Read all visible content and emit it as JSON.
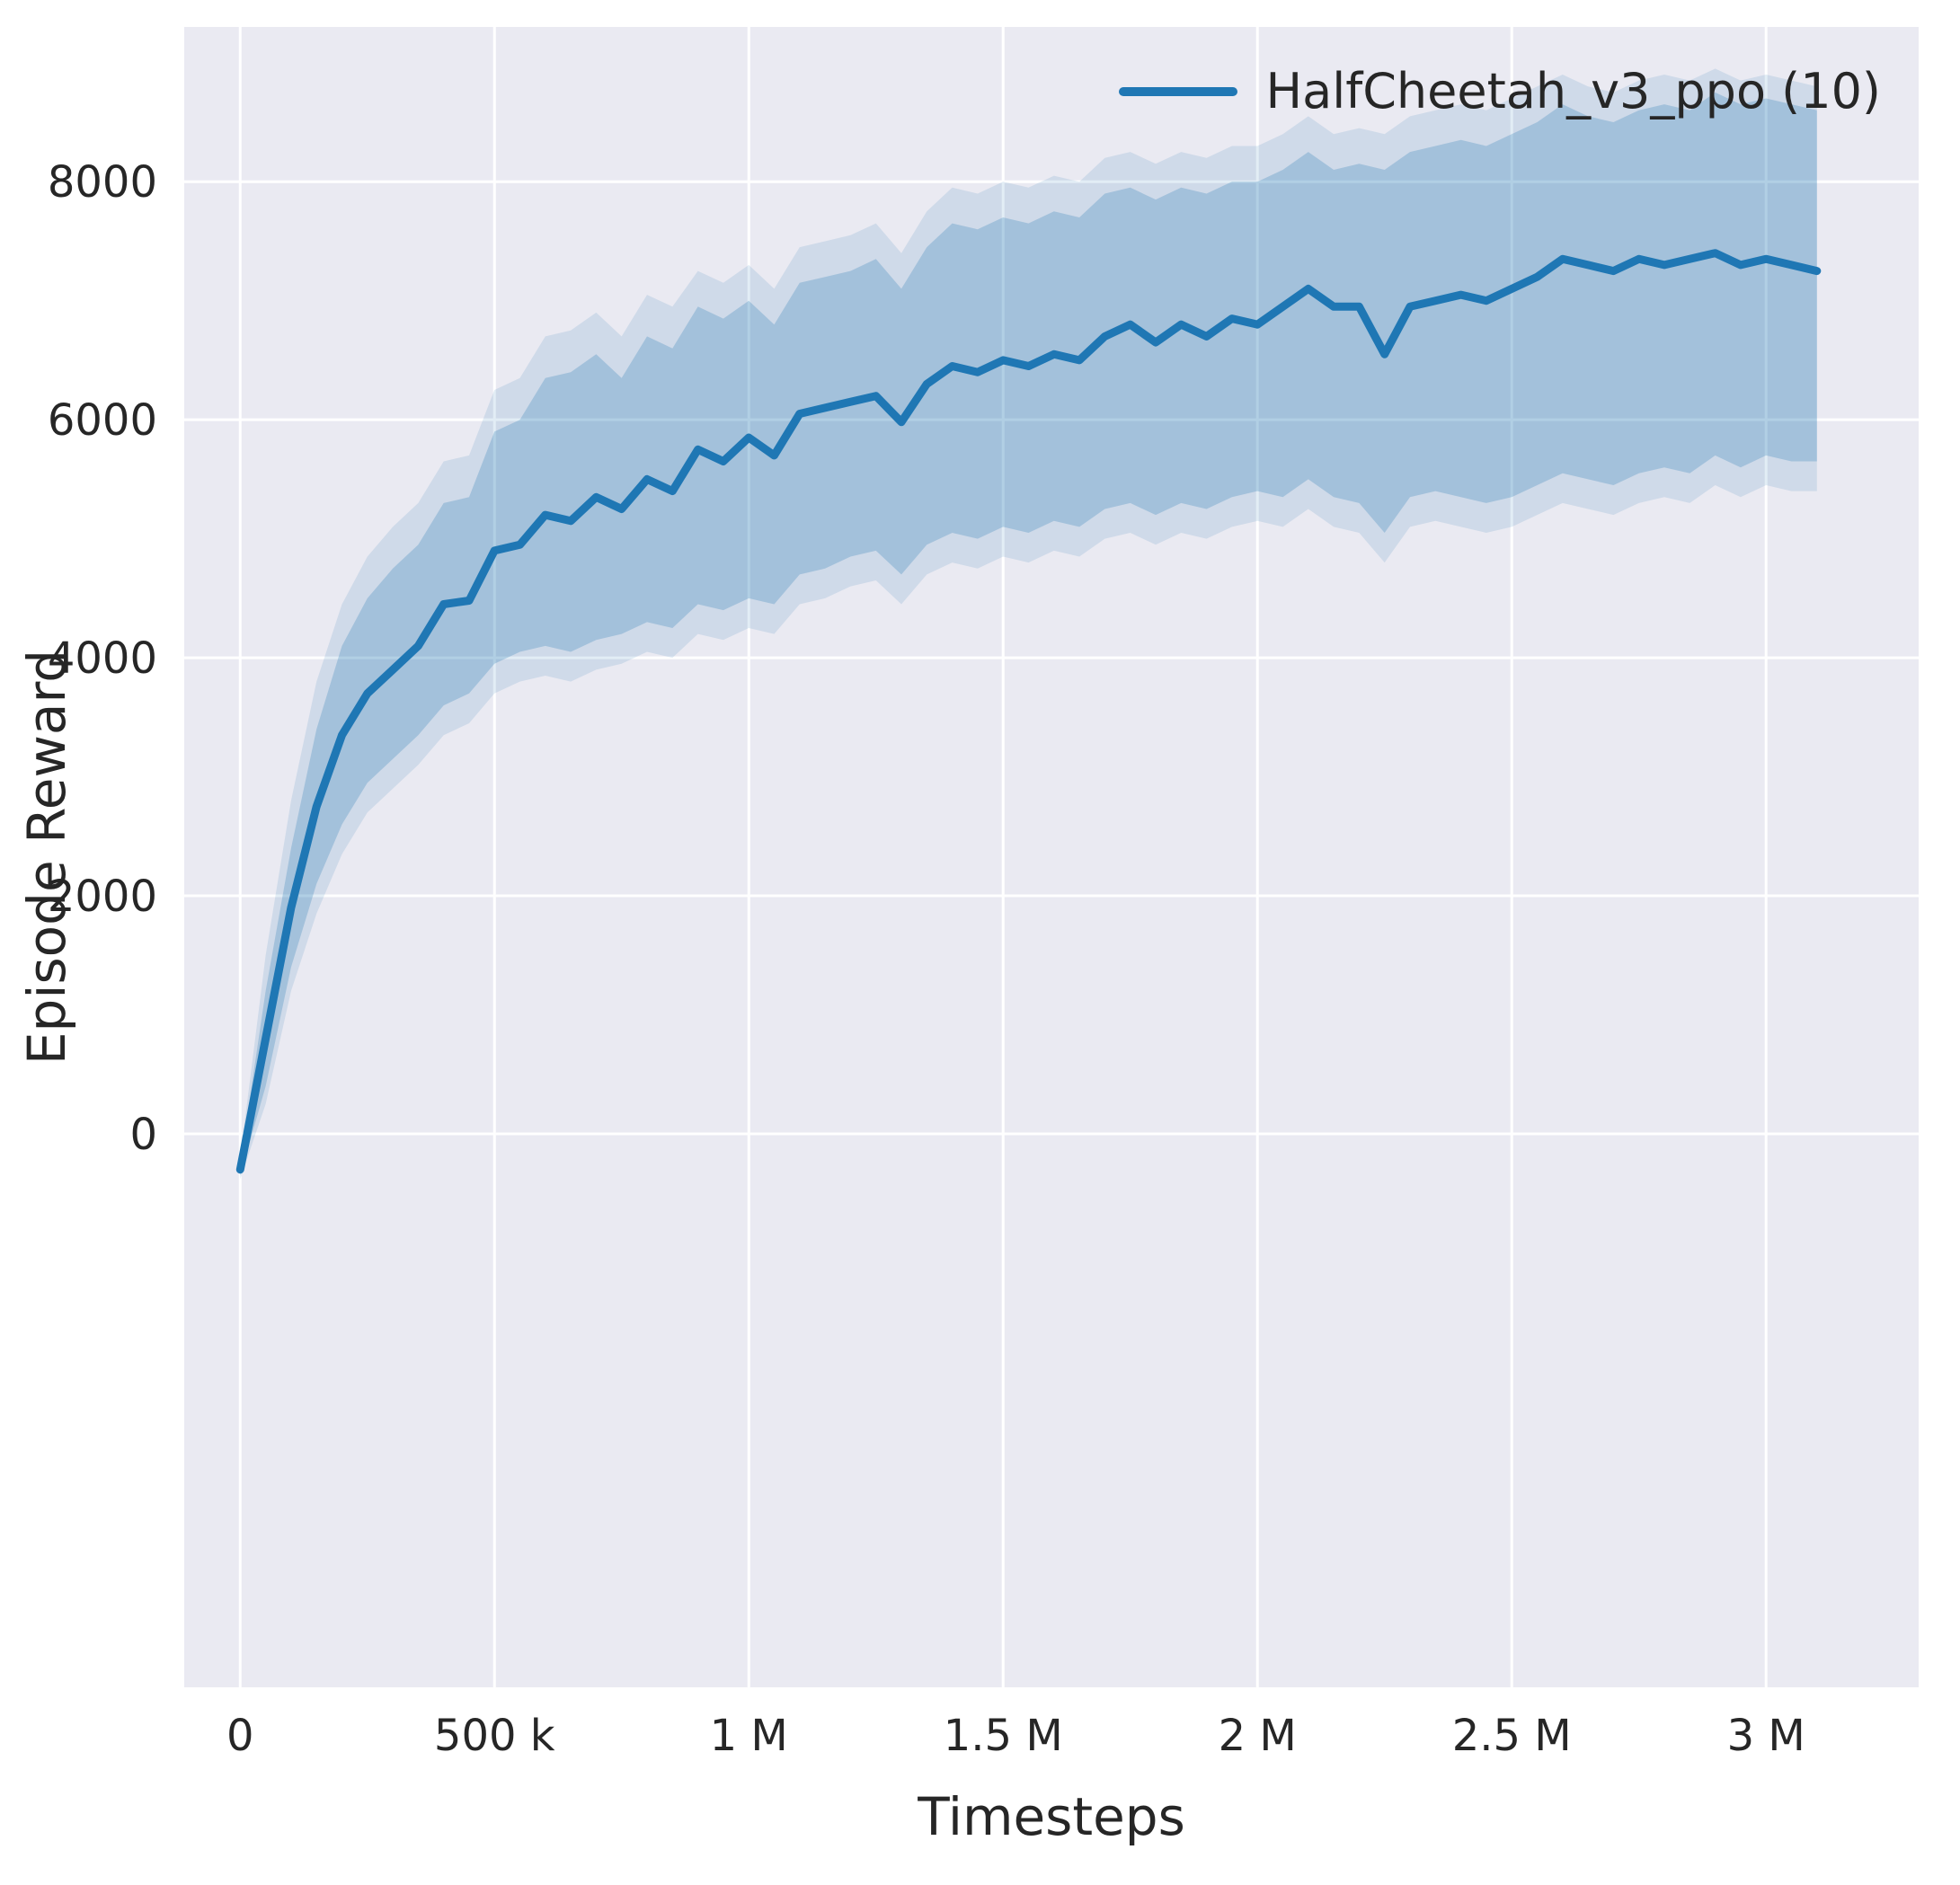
{
  "figure": {
    "background": "#ffffff",
    "plot_background": "#eaeaf2",
    "grid_color": "#ffffff",
    "text_color": "#262626"
  },
  "chart_data": {
    "type": "line",
    "title": "",
    "xlabel": "Timesteps",
    "ylabel": "Episode Reward",
    "grid": true,
    "legend_position": "upper right",
    "legend": [
      {
        "label": "HalfCheetah_v3_ppo (10)",
        "color": "#1f77b4"
      }
    ],
    "xlim": [
      -110000,
      3300000
    ],
    "ylim": [
      -4650,
      9300
    ],
    "xticks": {
      "values": [
        0,
        500000,
        1000000,
        1500000,
        2000000,
        2500000,
        3000000
      ],
      "labels": [
        "0",
        "500 k",
        "1 M",
        "1.5 M",
        "2 M",
        "2.5 M",
        "3 M"
      ]
    },
    "yticks": {
      "values": [
        0,
        2000,
        4000,
        6000,
        8000
      ],
      "labels": [
        "0",
        "2000",
        "4000",
        "6000",
        "8000"
      ]
    },
    "series": [
      {
        "name": "HalfCheetah_v3_ppo (10)",
        "color": "#1f77b4",
        "line_width": 9,
        "band_alpha": 0.25,
        "outer_band_alpha": 0.13,
        "x": [
          0,
          50000,
          100000,
          150000,
          200000,
          250000,
          300000,
          350000,
          400000,
          450000,
          500000,
          550000,
          600000,
          650000,
          700000,
          750000,
          800000,
          850000,
          900000,
          950000,
          1000000,
          1050000,
          1100000,
          1150000,
          1200000,
          1250000,
          1300000,
          1350000,
          1400000,
          1450000,
          1500000,
          1550000,
          1600000,
          1650000,
          1700000,
          1750000,
          1800000,
          1850000,
          1900000,
          1950000,
          2000000,
          2050000,
          2100000,
          2150000,
          2200000,
          2250000,
          2300000,
          2350000,
          2400000,
          2450000,
          2500000,
          2550000,
          2600000,
          2650000,
          2700000,
          2750000,
          2800000,
          2850000,
          2900000,
          2950000,
          3000000,
          3050000,
          3100000
        ],
        "mean": [
          -300,
          800,
          1900,
          2750,
          3350,
          3700,
          3900,
          4100,
          4450,
          4480,
          4900,
          4950,
          5200,
          5150,
          5350,
          5250,
          5500,
          5400,
          5750,
          5650,
          5850,
          5700,
          6050,
          6100,
          6150,
          6200,
          5980,
          6300,
          6450,
          6400,
          6500,
          6450,
          6550,
          6500,
          6700,
          6800,
          6650,
          6800,
          6700,
          6850,
          6800,
          6950,
          7100,
          6950,
          6950,
          6550,
          6950,
          7000,
          7050,
          7000,
          7100,
          7200,
          7350,
          7300,
          7250,
          7350,
          7300,
          7350,
          7400,
          7300,
          7350,
          7300,
          7250
        ],
        "band_lower": [
          -350,
          400,
          1400,
          2100,
          2600,
          2950,
          3150,
          3350,
          3600,
          3700,
          3950,
          4050,
          4100,
          4050,
          4150,
          4200,
          4300,
          4250,
          4450,
          4400,
          4500,
          4450,
          4700,
          4750,
          4850,
          4900,
          4700,
          4950,
          5050,
          5000,
          5100,
          5050,
          5150,
          5100,
          5250,
          5300,
          5200,
          5300,
          5250,
          5350,
          5400,
          5350,
          5500,
          5350,
          5300,
          5050,
          5350,
          5400,
          5350,
          5300,
          5350,
          5450,
          5550,
          5500,
          5450,
          5550,
          5600,
          5550,
          5700,
          5600,
          5700,
          5650,
          5650
        ],
        "band_upper": [
          -250,
          1200,
          2400,
          3400,
          4100,
          4500,
          4750,
          4950,
          5300,
          5350,
          5900,
          6000,
          6350,
          6400,
          6550,
          6350,
          6700,
          6600,
          6950,
          6850,
          7000,
          6800,
          7150,
          7200,
          7250,
          7350,
          7100,
          7450,
          7650,
          7600,
          7700,
          7650,
          7750,
          7700,
          7900,
          7950,
          7850,
          7950,
          7900,
          8000,
          8000,
          8100,
          8250,
          8100,
          8150,
          8100,
          8250,
          8300,
          8350,
          8300,
          8400,
          8500,
          8650,
          8550,
          8500,
          8600,
          8650,
          8600,
          8750,
          8650,
          8700,
          8650,
          8600
        ],
        "outer_lower": [
          -380,
          250,
          1200,
          1850,
          2350,
          2700,
          2900,
          3100,
          3350,
          3450,
          3700,
          3800,
          3850,
          3800,
          3900,
          3950,
          4050,
          4000,
          4200,
          4150,
          4250,
          4200,
          4450,
          4500,
          4600,
          4650,
          4450,
          4700,
          4800,
          4750,
          4850,
          4800,
          4900,
          4850,
          5000,
          5050,
          4950,
          5050,
          5000,
          5100,
          5150,
          5100,
          5250,
          5100,
          5050,
          4800,
          5100,
          5150,
          5100,
          5050,
          5100,
          5200,
          5300,
          5250,
          5200,
          5300,
          5350,
          5300,
          5450,
          5350,
          5450,
          5400,
          5400
        ],
        "outer_upper": [
          -200,
          1500,
          2800,
          3800,
          4450,
          4850,
          5100,
          5300,
          5650,
          5700,
          6250,
          6350,
          6700,
          6750,
          6900,
          6700,
          7050,
          6950,
          7250,
          7150,
          7300,
          7100,
          7450,
          7500,
          7550,
          7650,
          7400,
          7750,
          7950,
          7900,
          8000,
          7950,
          8050,
          8000,
          8200,
          8250,
          8150,
          8250,
          8200,
          8300,
          8300,
          8400,
          8550,
          8400,
          8450,
          8400,
          8550,
          8600,
          8650,
          8600,
          8700,
          8800,
          8900,
          8800,
          8750,
          8850,
          8900,
          8850,
          8950,
          8850,
          8900,
          8850,
          8800
        ]
      }
    ]
  }
}
